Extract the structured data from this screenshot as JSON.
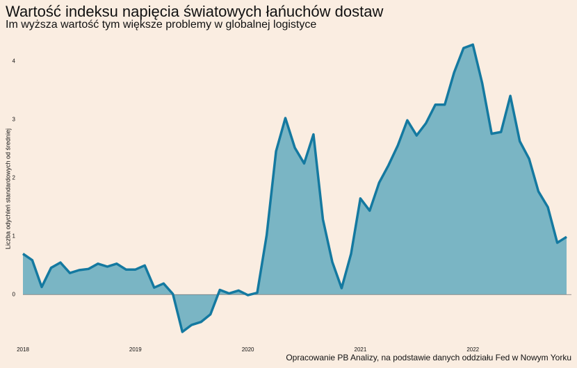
{
  "chart_data": {
    "type": "area",
    "title": "Wartość indeksu napięcia światowych łańuchów dostaw",
    "subtitle": "Im wyższa wartość tym większe problemy w globalnej logistyce",
    "ylabel": "Liczba odychleń standardowych od średniej",
    "caption": "Opracowanie PB Analizy, na podstawie danych oddziału Fed w Nowym Yorku",
    "color": "#1479a0",
    "fill": "#7ab5c4",
    "x": [
      2018,
      2018.083,
      2018.167,
      2018.25,
      2018.333,
      2018.417,
      2018.5,
      2018.583,
      2018.667,
      2018.75,
      2018.833,
      2018.917,
      2019,
      2019.083,
      2019.167,
      2019.25,
      2019.333,
      2019.417,
      2019.5,
      2019.583,
      2019.667,
      2019.75,
      2019.833,
      2019.917,
      2020,
      2020.083,
      2020.167,
      2020.25,
      2020.333,
      2020.417,
      2020.5,
      2020.583,
      2020.667,
      2020.75,
      2020.833,
      2020.917,
      2021,
      2021.083,
      2021.167,
      2021.25,
      2021.333,
      2021.417,
      2021.5,
      2021.583,
      2021.667,
      2021.75,
      2021.833,
      2021.917,
      2022,
      2022.083,
      2022.167,
      2022.25,
      2022.333,
      2022.417,
      2022.5,
      2022.583,
      2022.667,
      2022.75,
      2022.833
    ],
    "values": [
      0.7,
      0.59,
      0.13,
      0.46,
      0.55,
      0.37,
      0.42,
      0.44,
      0.53,
      0.48,
      0.53,
      0.43,
      0.43,
      0.5,
      0.12,
      0.19,
      0.01,
      -0.64,
      -0.52,
      -0.47,
      -0.34,
      0.08,
      0.02,
      0.07,
      -0.01,
      0.03,
      1.02,
      2.46,
      3.03,
      2.52,
      2.25,
      2.75,
      1.29,
      0.56,
      0.11,
      0.7,
      1.65,
      1.44,
      1.92,
      2.22,
      2.56,
      2.99,
      2.73,
      2.94,
      3.26,
      3.26,
      3.81,
      4.23,
      4.29,
      3.63,
      2.76,
      2.79,
      3.41,
      2.63,
      2.33,
      1.77,
      1.5,
      0.89,
      0.99
    ],
    "xlim": [
      2018,
      2022.833
    ],
    "xticks": [
      2018,
      2019,
      2020,
      2021,
      2022
    ],
    "ylim": [
      -0.7,
      4.4
    ],
    "yticks": [
      0,
      1,
      2,
      3,
      4
    ],
    "grid": false
  }
}
